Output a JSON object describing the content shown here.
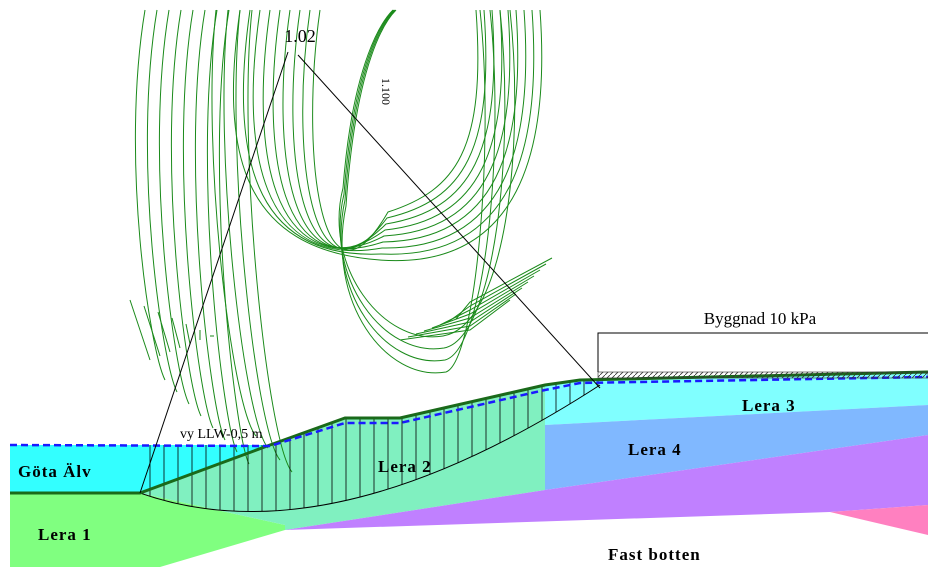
{
  "labels": {
    "safety_factor": "1.02",
    "contour": "1.100",
    "load": "Byggnad 10 kPa",
    "water_level": "vy LLW-0,5 m"
  },
  "layers": {
    "river": "Göta Älv",
    "clay_1": "Lera 1",
    "clay_2": "Lera 2",
    "clay_3": "Lera 3",
    "clay_4": "Lera 4",
    "bedrock": "Fast botten"
  }
}
